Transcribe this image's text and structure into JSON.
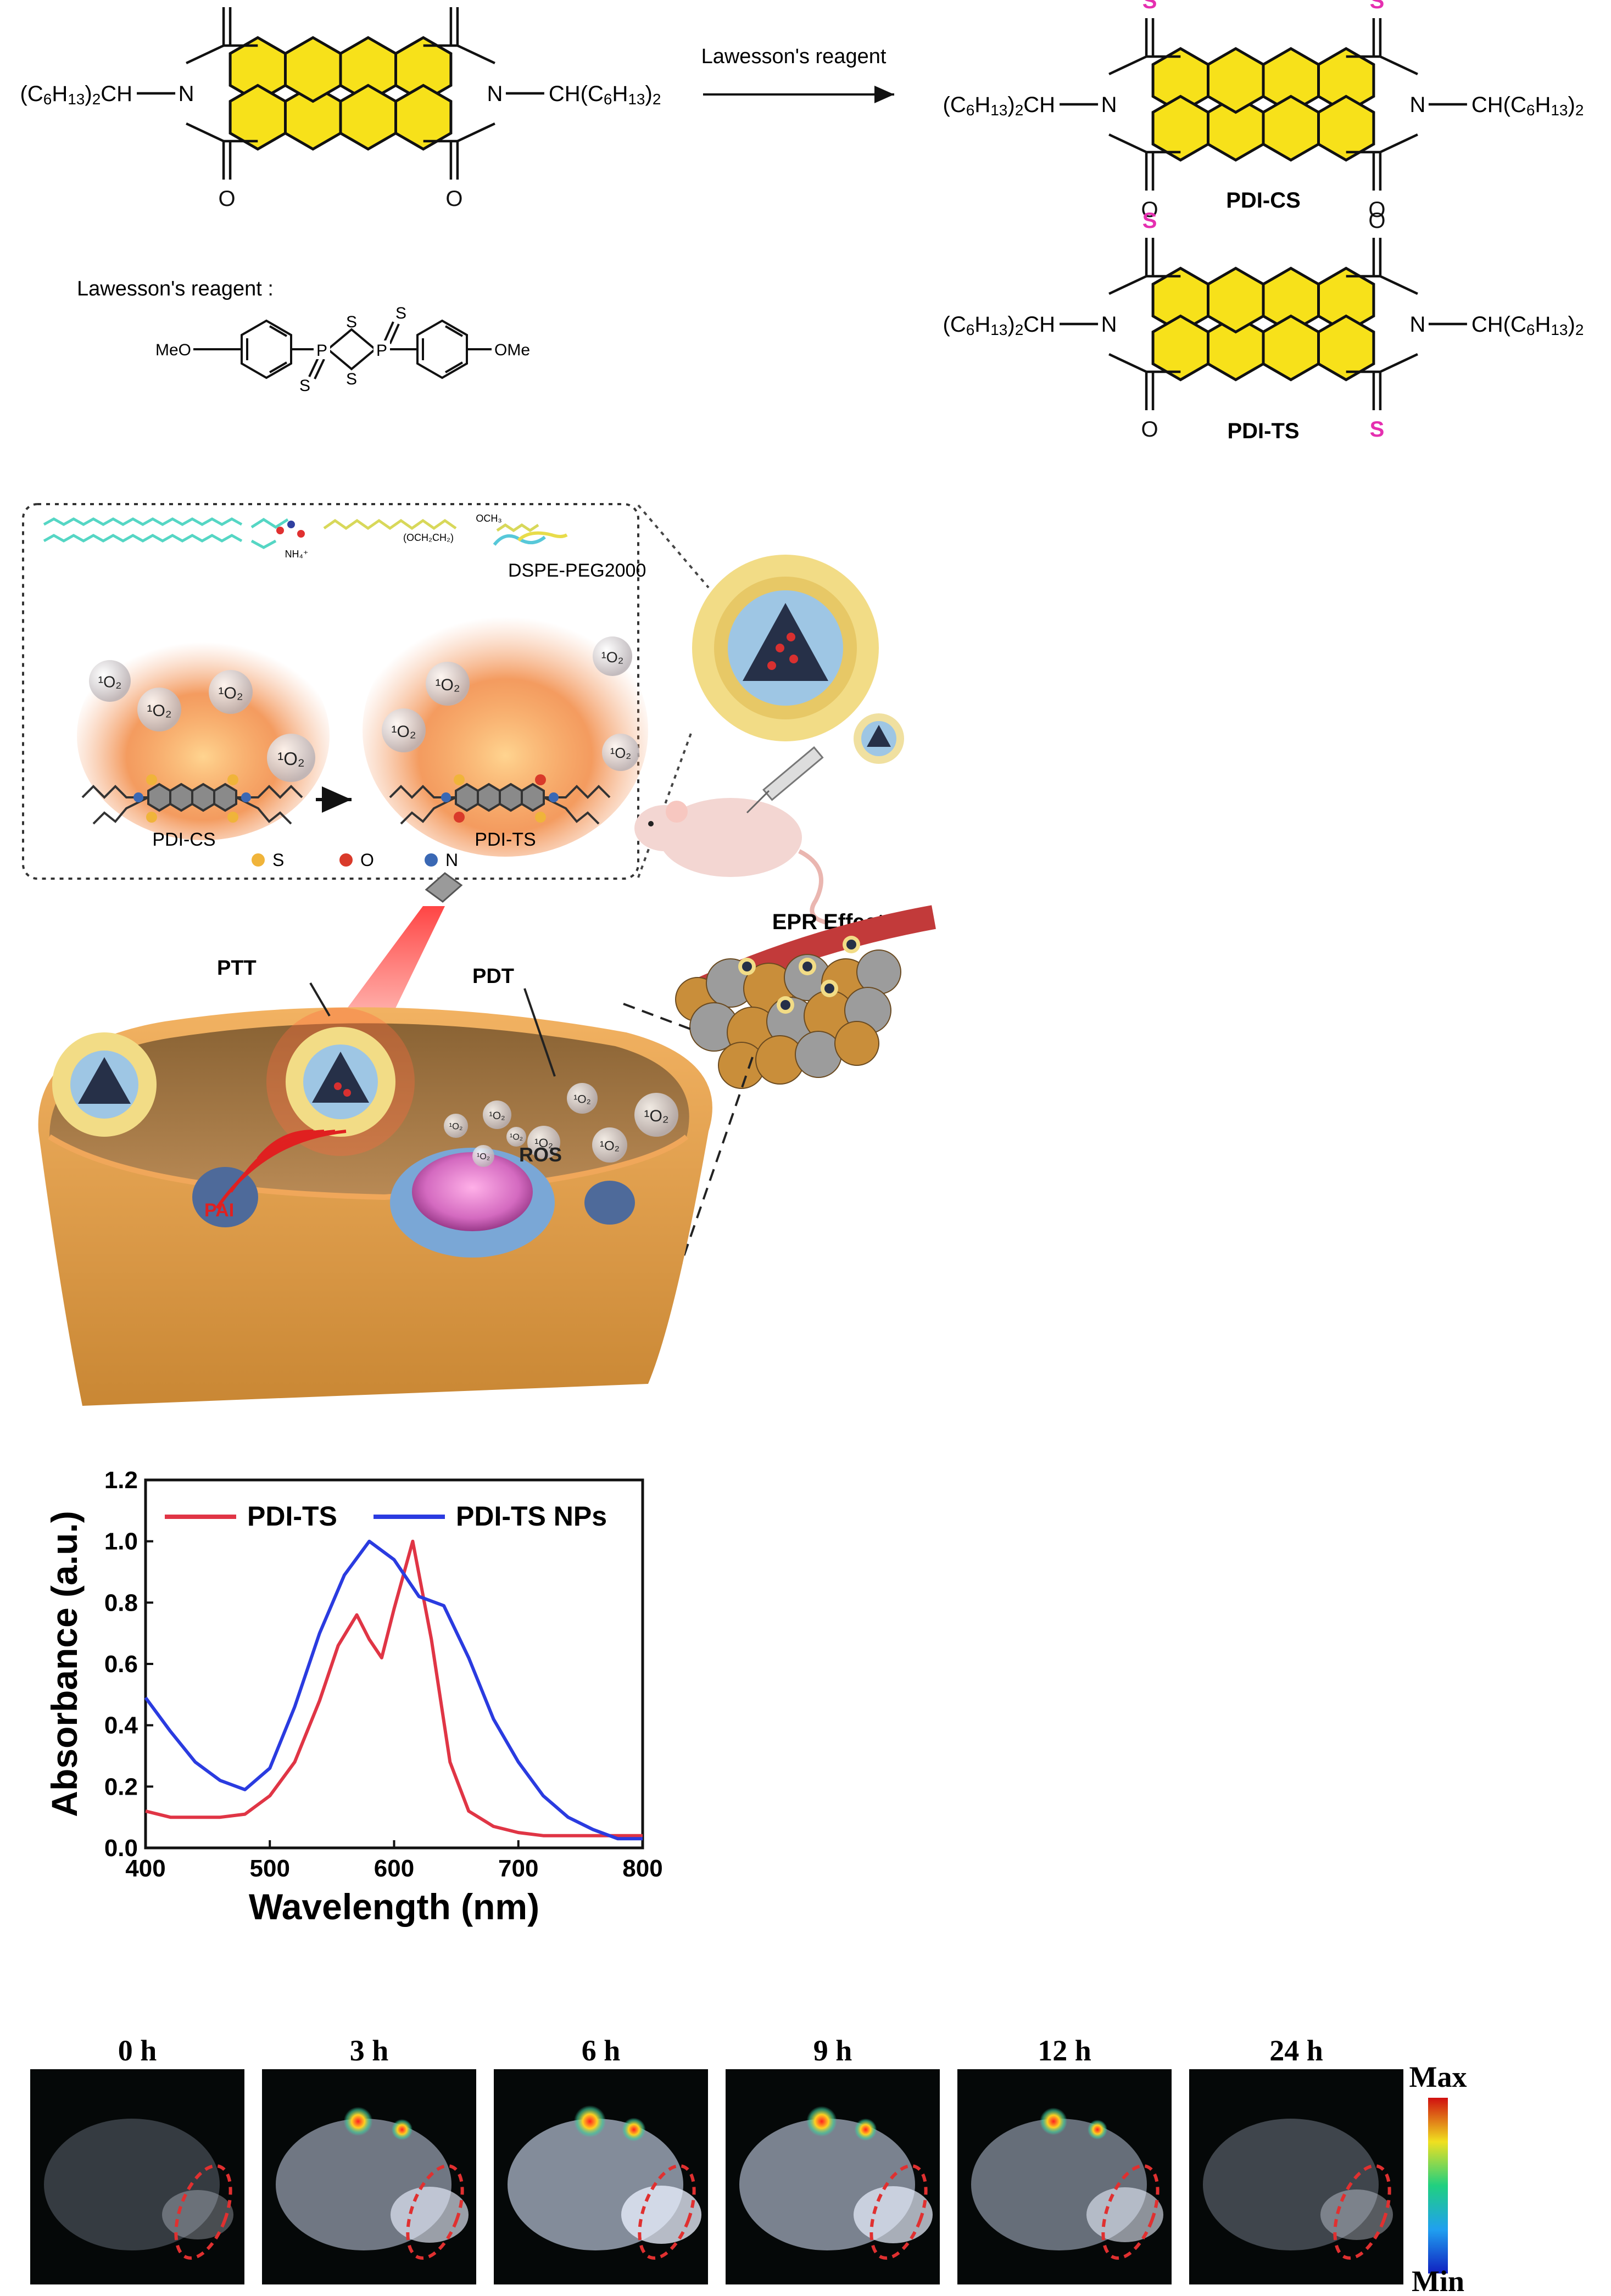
{
  "scheme": {
    "reagent_arrow_label": "Lawesson's reagent",
    "reagent_title": "Lawesson's reagent :",
    "reagent_groups": {
      "left": "MeO",
      "right": "OMe",
      "s": "S",
      "p": "P"
    },
    "substituent_left": "(C6H13)2CH",
    "substituent_right": "CH(C6H13)2",
    "atoms": {
      "O": "O",
      "N": "N",
      "S": "S"
    },
    "products": [
      {
        "name": "PDI-CS"
      },
      {
        "name": "PDI-TS"
      }
    ],
    "colors": {
      "ring_fill": "#f7e11a",
      "sulfur": "#e52fb0",
      "bond": "#111111"
    }
  },
  "illustration": {
    "dspe_label": "DSPE-PEG2000",
    "molecule_left": "PDI-CS",
    "molecule_right": "PDI-TS",
    "atom_legend": [
      {
        "label": "S",
        "color": "#f0b43a"
      },
      {
        "label": "O",
        "color": "#d93a2a"
      },
      {
        "label": "N",
        "color": "#3a68b4"
      }
    ],
    "singlet_oxygen": "¹O₂",
    "labels": {
      "ptt": "PTT",
      "pdt": "PDT",
      "ros": "ROS",
      "pai": "PAI",
      "epr": "EPR Effect"
    },
    "chem_labels": {
      "nh4": "NH₄⁺",
      "och2": "(OCH₂CH₂)",
      "och3": "OCH₃"
    }
  },
  "chart_data": {
    "type": "line",
    "xlabel": "Wavelength (nm)",
    "ylabel": "Absorbance (a.u.)",
    "xlim": [
      400,
      800
    ],
    "ylim": [
      0.0,
      1.2
    ],
    "xticks": [
      400,
      500,
      600,
      700,
      800
    ],
    "yticks": [
      0.0,
      0.2,
      0.4,
      0.6,
      0.8,
      1.0,
      1.2
    ],
    "legend_position": "top",
    "grid": false,
    "series": [
      {
        "name": "PDI-TS",
        "color": "#e03545",
        "x": [
          400,
          420,
          440,
          460,
          480,
          500,
          520,
          540,
          555,
          570,
          580,
          590,
          600,
          615,
          630,
          645,
          660,
          680,
          700,
          720,
          750,
          800
        ],
        "y": [
          0.12,
          0.1,
          0.1,
          0.1,
          0.11,
          0.17,
          0.28,
          0.48,
          0.66,
          0.76,
          0.68,
          0.62,
          0.78,
          1.0,
          0.68,
          0.28,
          0.12,
          0.07,
          0.05,
          0.04,
          0.04,
          0.04
        ]
      },
      {
        "name": "PDI-TS NPs",
        "color": "#2a3be0",
        "x": [
          400,
          420,
          440,
          460,
          480,
          500,
          520,
          540,
          560,
          580,
          600,
          620,
          640,
          660,
          680,
          700,
          720,
          740,
          760,
          780,
          800
        ],
        "y": [
          0.49,
          0.38,
          0.28,
          0.22,
          0.19,
          0.26,
          0.46,
          0.7,
          0.89,
          1.0,
          0.94,
          0.82,
          0.79,
          0.62,
          0.42,
          0.28,
          0.17,
          0.1,
          0.06,
          0.03,
          0.03
        ]
      }
    ]
  },
  "imaging": {
    "timepoints": [
      "0 h",
      "3 h",
      "6 h",
      "9 h",
      "12 h",
      "24 h"
    ],
    "signal_levels": [
      0.0,
      0.6,
      0.8,
      0.7,
      0.5,
      0.1
    ],
    "colorbar": {
      "max": "Max",
      "min": "Min"
    }
  }
}
